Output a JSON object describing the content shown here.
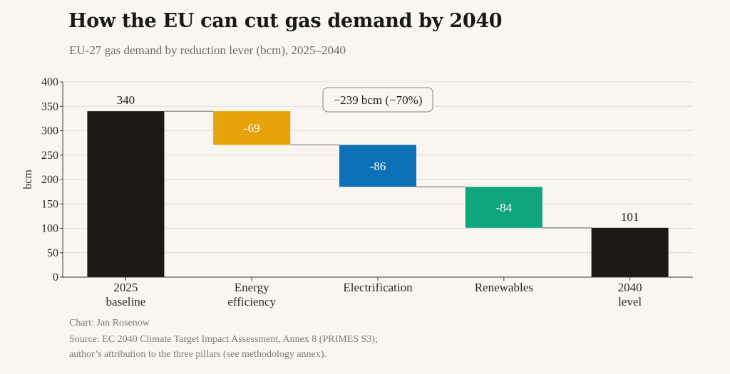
{
  "title": "How the EU can cut gas demand by 2040",
  "subtitle": "EU-27 gas demand by reduction lever (bcm), 2025–2040",
  "credit": "Chart: Jan Rosenow",
  "source_line1": "Source: EC 2040 Climate Target Impact Assessment, Annex 8 (PRIMES S3);",
  "source_line2": "author’s attribution to the three pillars (see methodology annex).",
  "colors": {
    "total": "#1c1813",
    "energy_efficiency": "#e8a20a",
    "electrification": "#0d71b8",
    "renewables": "#0fa47c",
    "grid": "#e2ddd5",
    "axis": "#3a3532",
    "connector": "#6b6560"
  },
  "chart_data": {
    "type": "bar",
    "subtype": "waterfall",
    "ylabel": "bcm",
    "ylim": [
      0,
      400
    ],
    "yticks": [
      0,
      50,
      100,
      150,
      200,
      250,
      300,
      350,
      400
    ],
    "grid": true,
    "categories": [
      {
        "label": [
          "2025",
          "baseline"
        ],
        "kind": "total",
        "value": 340,
        "data_label": "340"
      },
      {
        "label": [
          "Energy",
          "efficiency"
        ],
        "kind": "delta",
        "value": -69,
        "data_label": "-69"
      },
      {
        "label": [
          "Electrification"
        ],
        "kind": "delta",
        "value": -86,
        "data_label": "-86"
      },
      {
        "label": [
          "Renewables"
        ],
        "kind": "delta",
        "value": -84,
        "data_label": "-84"
      },
      {
        "label": [
          "2040",
          "level"
        ],
        "kind": "total",
        "value": 101,
        "data_label": "101"
      }
    ],
    "annotation": "−239 bcm  (−70%)"
  }
}
